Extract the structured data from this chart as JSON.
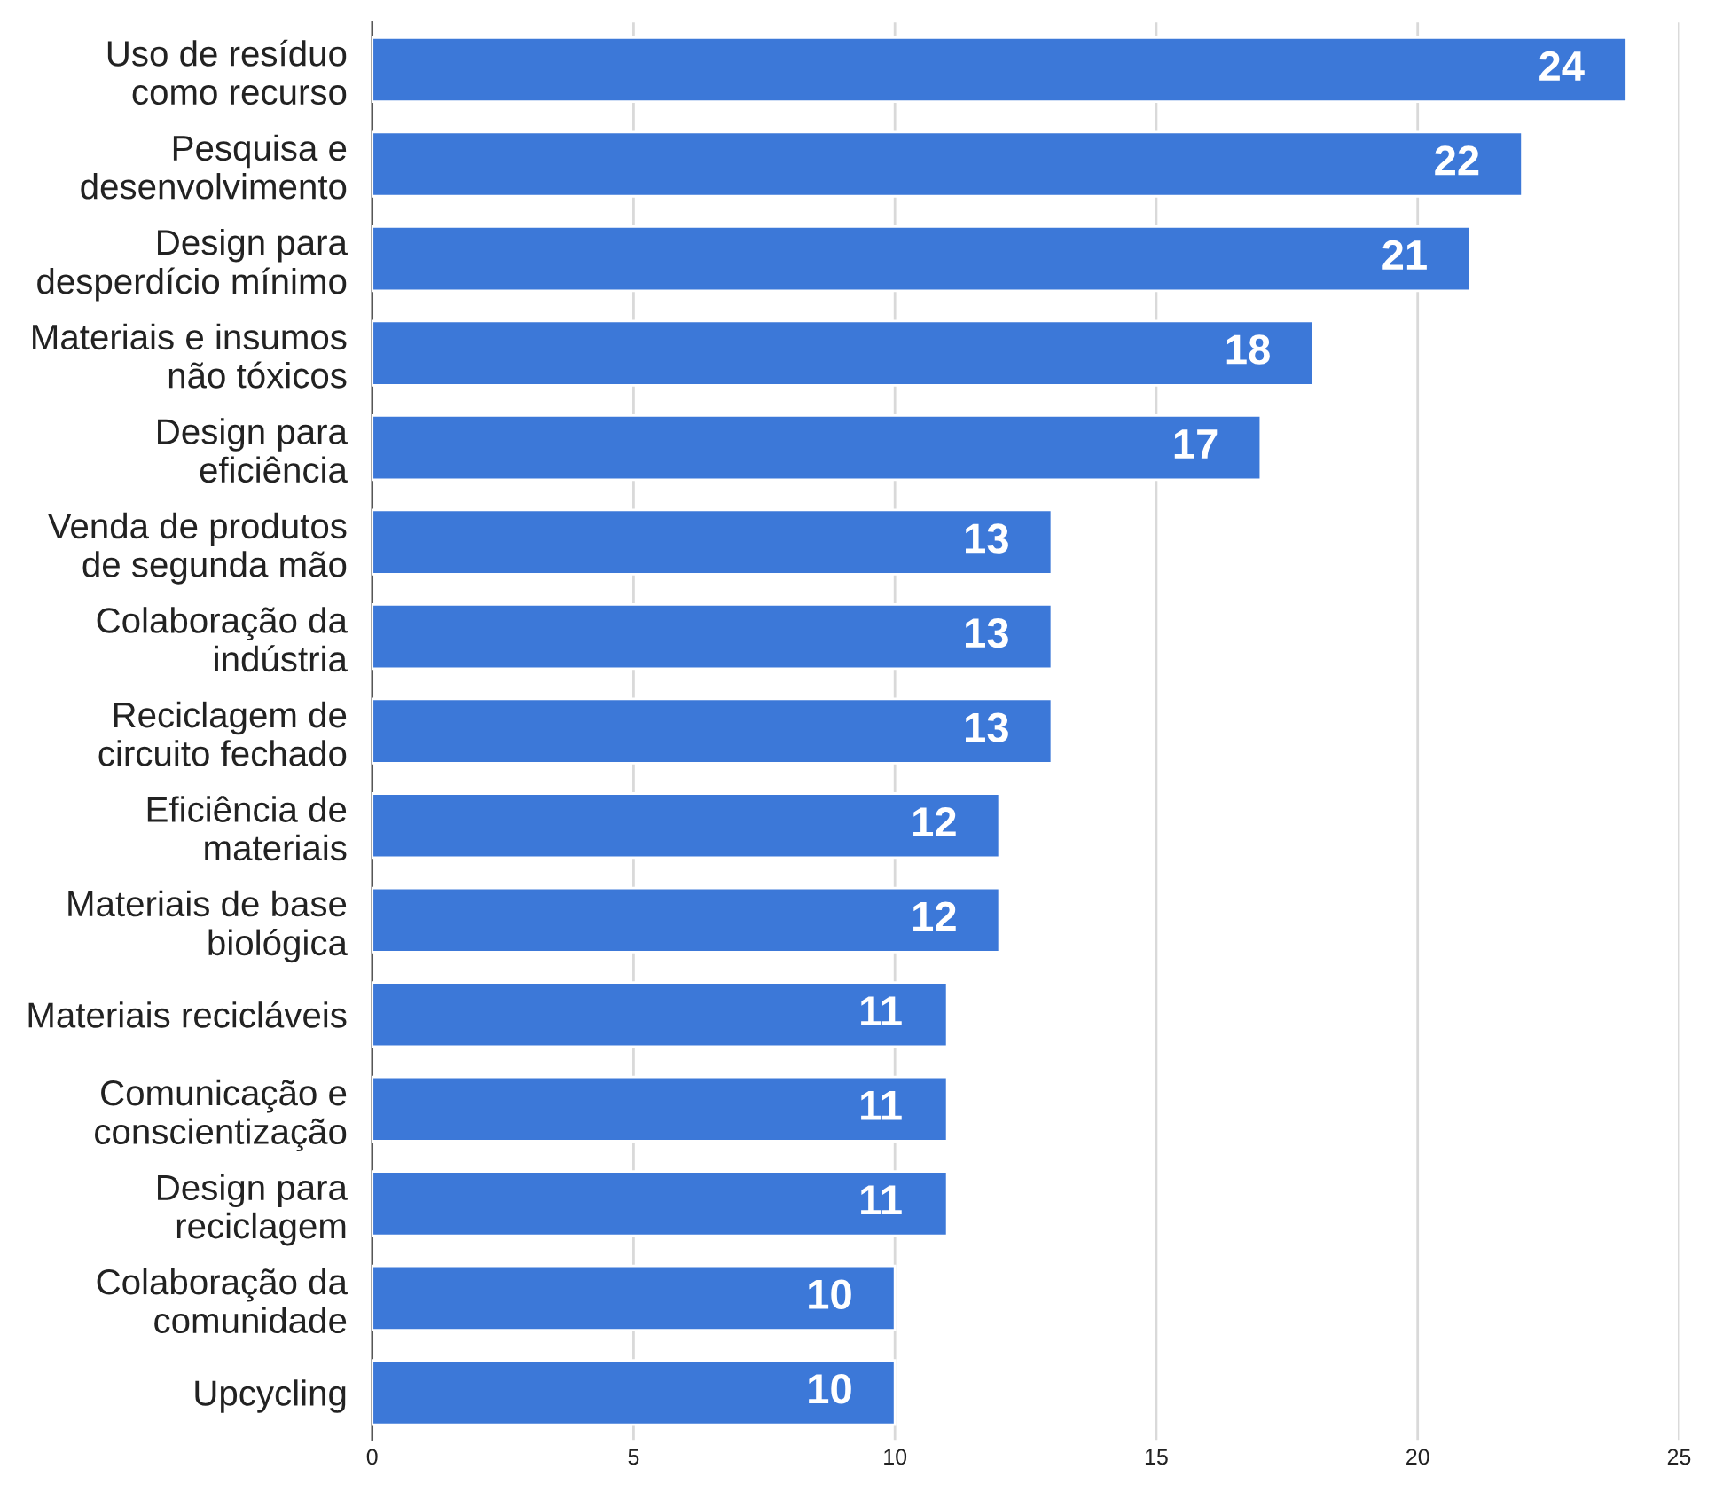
{
  "chart_data": {
    "type": "bar",
    "orientation": "horizontal",
    "categories": [
      "Uso de resíduo\ncomo recurso",
      "Pesquisa e\ndesenvolvimento",
      "Design para\ndesperdício mínimo",
      "Materiais e insumos\nnão tóxicos",
      "Design para\neficiência",
      "Venda de produtos\nde segunda mão",
      "Colaboração da\nindústria",
      "Reciclagem de\ncircuito fechado",
      "Eficiência de\nmateriais",
      "Materiais de base\nbiológica",
      "Materiais recicláveis",
      "Comunicação e\nconscientização",
      "Design para\nreciclagem",
      "Colaboração da\ncomunidade",
      "Upcycling"
    ],
    "values": [
      24,
      22,
      21,
      18,
      17,
      13,
      13,
      13,
      12,
      12,
      11,
      11,
      11,
      10,
      10
    ],
    "color": "#3c78d8",
    "xlim": [
      0,
      25
    ],
    "xticks": [
      0,
      5,
      10,
      15,
      20,
      25
    ],
    "grid": "x",
    "data_labels": true
  }
}
